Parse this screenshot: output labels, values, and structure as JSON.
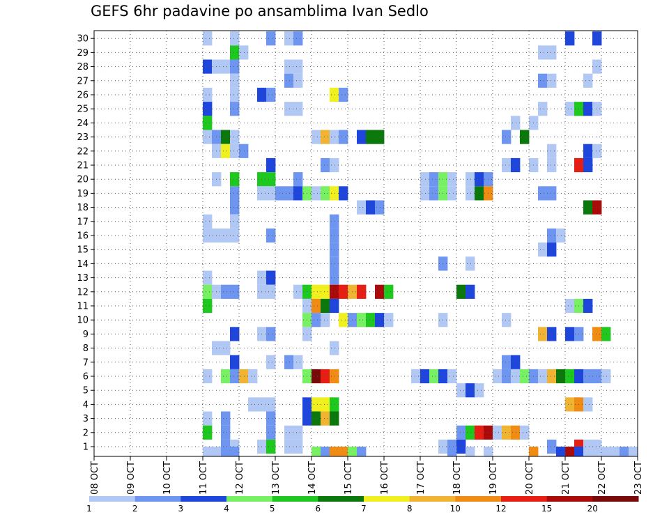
{
  "chart_data": {
    "type": "heatmap",
    "title": "GEFS 6hr padavine po ansamblima Ivan Sedlo",
    "x_ticks": [
      "08 OCT",
      "09 OCT",
      "10 OCT",
      "11 OCT",
      "12 OCT",
      "13 OCT",
      "14 OCT",
      "15 OCT",
      "16 OCT",
      "17 OCT",
      "18 OCT",
      "19 OCT",
      "20 OCT",
      "21 OCT",
      "22 OCT",
      "23 OCT"
    ],
    "y_range": [
      1,
      30
    ],
    "x_range_days": [
      8,
      23
    ],
    "grid": true,
    "colorbar": {
      "labels": [
        "1",
        "2",
        "3",
        "4",
        "5",
        "6",
        "7",
        "8",
        "10",
        "12",
        "15",
        "20"
      ],
      "colors": [
        "#b2c8f4",
        "#6e96f0",
        "#1e46dc",
        "#78f064",
        "#1ec81e",
        "#0a780a",
        "#f0f01e",
        "#f0b432",
        "#f08c14",
        "#e61e14",
        "#aa0a0a",
        "#780a0a"
      ]
    },
    "cells": [
      [
        30,
        11.0,
        1
      ],
      [
        30,
        11.75,
        1
      ],
      [
        30,
        12.75,
        2
      ],
      [
        30,
        13.25,
        1
      ],
      [
        30,
        13.5,
        2
      ],
      [
        30,
        21.0,
        3
      ],
      [
        30,
        21.75,
        3
      ],
      [
        29,
        11.75,
        5
      ],
      [
        29,
        12.0,
        1
      ],
      [
        29,
        20.25,
        1
      ],
      [
        29,
        20.5,
        1
      ],
      [
        28,
        11.0,
        3
      ],
      [
        28,
        11.25,
        1
      ],
      [
        28,
        11.5,
        1
      ],
      [
        28,
        11.75,
        2
      ],
      [
        28,
        13.25,
        1
      ],
      [
        28,
        13.5,
        1
      ],
      [
        28,
        21.75,
        1
      ],
      [
        27,
        11.75,
        1
      ],
      [
        27,
        13.25,
        2
      ],
      [
        27,
        13.5,
        1
      ],
      [
        27,
        20.25,
        2
      ],
      [
        27,
        20.5,
        1
      ],
      [
        27,
        21.5,
        1
      ],
      [
        26,
        11.0,
        1
      ],
      [
        26,
        11.75,
        1
      ],
      [
        26,
        12.5,
        3
      ],
      [
        26,
        12.75,
        2
      ],
      [
        26,
        14.5,
        7
      ],
      [
        26,
        14.75,
        2
      ],
      [
        25,
        11.0,
        3
      ],
      [
        25,
        11.75,
        2
      ],
      [
        25,
        13.25,
        1
      ],
      [
        25,
        13.5,
        1
      ],
      [
        25,
        20.25,
        1
      ],
      [
        25,
        21.0,
        1
      ],
      [
        25,
        21.25,
        5
      ],
      [
        25,
        21.5,
        3
      ],
      [
        25,
        21.75,
        1
      ],
      [
        24,
        11.0,
        5
      ],
      [
        24,
        19.5,
        1
      ],
      [
        24,
        20.0,
        1
      ],
      [
        23,
        11.0,
        1
      ],
      [
        23,
        11.25,
        2
      ],
      [
        23,
        11.5,
        6
      ],
      [
        23,
        11.75,
        1
      ],
      [
        23,
        14.0,
        1
      ],
      [
        23,
        14.25,
        8
      ],
      [
        23,
        14.5,
        1
      ],
      [
        23,
        14.75,
        2
      ],
      [
        23,
        15.25,
        3
      ],
      [
        23,
        15.5,
        6
      ],
      [
        23,
        15.75,
        6
      ],
      [
        23,
        19.25,
        2
      ],
      [
        23,
        19.75,
        6
      ],
      [
        22,
        11.25,
        1
      ],
      [
        22,
        11.5,
        7
      ],
      [
        22,
        11.75,
        1
      ],
      [
        22,
        12.0,
        2
      ],
      [
        22,
        20.5,
        1
      ],
      [
        22,
        21.5,
        3
      ],
      [
        22,
        21.75,
        1
      ],
      [
        21,
        12.75,
        3
      ],
      [
        21,
        14.25,
        2
      ],
      [
        21,
        14.5,
        1
      ],
      [
        21,
        19.25,
        1
      ],
      [
        21,
        19.5,
        3
      ],
      [
        21,
        20.0,
        1
      ],
      [
        21,
        20.5,
        1
      ],
      [
        21,
        21.25,
        10
      ],
      [
        21,
        21.5,
        3
      ],
      [
        20,
        11.25,
        1
      ],
      [
        20,
        11.75,
        5
      ],
      [
        20,
        12.5,
        5
      ],
      [
        20,
        12.75,
        5
      ],
      [
        20,
        13.5,
        2
      ],
      [
        20,
        17.0,
        1
      ],
      [
        20,
        17.25,
        2
      ],
      [
        20,
        17.5,
        4
      ],
      [
        20,
        17.75,
        1
      ],
      [
        20,
        18.25,
        1
      ],
      [
        20,
        18.5,
        3
      ],
      [
        20,
        18.75,
        2
      ],
      [
        19,
        11.75,
        2
      ],
      [
        19,
        12.5,
        1
      ],
      [
        19,
        12.75,
        1
      ],
      [
        19,
        13.0,
        2
      ],
      [
        19,
        13.25,
        2
      ],
      [
        19,
        13.5,
        3
      ],
      [
        19,
        13.75,
        4
      ],
      [
        19,
        14.0,
        1
      ],
      [
        19,
        14.25,
        4
      ],
      [
        19,
        14.5,
        7
      ],
      [
        19,
        14.75,
        3
      ],
      [
        19,
        17.0,
        1
      ],
      [
        19,
        17.25,
        2
      ],
      [
        19,
        17.5,
        4
      ],
      [
        19,
        17.75,
        1
      ],
      [
        19,
        18.25,
        1
      ],
      [
        19,
        18.5,
        6
      ],
      [
        19,
        18.75,
        9
      ],
      [
        19,
        20.25,
        2
      ],
      [
        19,
        20.5,
        2
      ],
      [
        18,
        11.75,
        2
      ],
      [
        18,
        15.25,
        1
      ],
      [
        18,
        15.5,
        3
      ],
      [
        18,
        15.75,
        2
      ],
      [
        18,
        21.5,
        6
      ],
      [
        18,
        21.75,
        11
      ],
      [
        17,
        11.0,
        1
      ],
      [
        17,
        11.75,
        1
      ],
      [
        17,
        14.5,
        2
      ],
      [
        16,
        11.0,
        1
      ],
      [
        16,
        11.25,
        1
      ],
      [
        16,
        11.5,
        1
      ],
      [
        16,
        11.75,
        1
      ],
      [
        16,
        12.75,
        2
      ],
      [
        16,
        14.5,
        2
      ],
      [
        16,
        20.5,
        2
      ],
      [
        16,
        20.75,
        1
      ],
      [
        15,
        14.5,
        2
      ],
      [
        15,
        20.25,
        1
      ],
      [
        15,
        20.5,
        3
      ],
      [
        14,
        14.5,
        2
      ],
      [
        14,
        17.5,
        2
      ],
      [
        14,
        18.25,
        1
      ],
      [
        13,
        11.0,
        1
      ],
      [
        13,
        12.5,
        1
      ],
      [
        13,
        12.75,
        3
      ],
      [
        13,
        14.5,
        2
      ],
      [
        12,
        11.0,
        4
      ],
      [
        12,
        11.25,
        1
      ],
      [
        12,
        11.5,
        2
      ],
      [
        12,
        11.75,
        2
      ],
      [
        12,
        12.5,
        1
      ],
      [
        12,
        12.75,
        1
      ],
      [
        12,
        13.5,
        1
      ],
      [
        12,
        13.75,
        5
      ],
      [
        12,
        14.0,
        7
      ],
      [
        12,
        14.25,
        7
      ],
      [
        12,
        14.5,
        11
      ],
      [
        12,
        14.75,
        10
      ],
      [
        12,
        15.0,
        8
      ],
      [
        12,
        15.25,
        10
      ],
      [
        12,
        15.75,
        11
      ],
      [
        12,
        16.0,
        5
      ],
      [
        12,
        18.0,
        6
      ],
      [
        12,
        18.25,
        3
      ],
      [
        11,
        11.0,
        5
      ],
      [
        11,
        13.75,
        1
      ],
      [
        11,
        14.0,
        9
      ],
      [
        11,
        14.25,
        6
      ],
      [
        11,
        14.5,
        3
      ],
      [
        11,
        21.0,
        1
      ],
      [
        11,
        21.25,
        4
      ],
      [
        11,
        21.5,
        3
      ],
      [
        10,
        13.75,
        4
      ],
      [
        10,
        14.0,
        2
      ],
      [
        10,
        14.25,
        1
      ],
      [
        10,
        14.75,
        7
      ],
      [
        10,
        15.0,
        2
      ],
      [
        10,
        15.25,
        4
      ],
      [
        10,
        15.5,
        5
      ],
      [
        10,
        15.75,
        3
      ],
      [
        10,
        16.0,
        1
      ],
      [
        10,
        17.5,
        1
      ],
      [
        10,
        19.25,
        1
      ],
      [
        9,
        11.75,
        3
      ],
      [
        9,
        12.5,
        1
      ],
      [
        9,
        12.75,
        2
      ],
      [
        9,
        13.75,
        1
      ],
      [
        9,
        20.25,
        8
      ],
      [
        9,
        20.5,
        3
      ],
      [
        9,
        21.0,
        3
      ],
      [
        9,
        21.25,
        2
      ],
      [
        9,
        21.75,
        9
      ],
      [
        9,
        22.0,
        5
      ],
      [
        8,
        11.25,
        1
      ],
      [
        8,
        11.5,
        1
      ],
      [
        8,
        14.5,
        1
      ],
      [
        7,
        11.75,
        3
      ],
      [
        7,
        12.75,
        1
      ],
      [
        7,
        13.25,
        2
      ],
      [
        7,
        13.5,
        1
      ],
      [
        7,
        19.25,
        2
      ],
      [
        7,
        19.5,
        3
      ],
      [
        6,
        11.0,
        1
      ],
      [
        6,
        11.5,
        4
      ],
      [
        6,
        11.75,
        2
      ],
      [
        6,
        12.0,
        8
      ],
      [
        6,
        12.25,
        1
      ],
      [
        6,
        13.75,
        4
      ],
      [
        6,
        14.0,
        12
      ],
      [
        6,
        14.25,
        10
      ],
      [
        6,
        14.5,
        9
      ],
      [
        6,
        16.75,
        1
      ],
      [
        6,
        17.0,
        3
      ],
      [
        6,
        17.25,
        4
      ],
      [
        6,
        17.5,
        3
      ],
      [
        6,
        17.75,
        1
      ],
      [
        6,
        19.0,
        1
      ],
      [
        6,
        19.25,
        2
      ],
      [
        6,
        19.5,
        1
      ],
      [
        6,
        19.75,
        4
      ],
      [
        6,
        20.0,
        2
      ],
      [
        6,
        20.25,
        1
      ],
      [
        6,
        20.5,
        8
      ],
      [
        6,
        20.75,
        6
      ],
      [
        6,
        21.0,
        5
      ],
      [
        6,
        21.25,
        3
      ],
      [
        6,
        21.5,
        2
      ],
      [
        6,
        21.75,
        2
      ],
      [
        6,
        22.0,
        1
      ],
      [
        5,
        18.0,
        1
      ],
      [
        5,
        18.25,
        3
      ],
      [
        5,
        18.5,
        1
      ],
      [
        4,
        12.25,
        1
      ],
      [
        4,
        12.5,
        1
      ],
      [
        4,
        12.75,
        1
      ],
      [
        4,
        13.75,
        3
      ],
      [
        4,
        14.0,
        7
      ],
      [
        4,
        14.25,
        7
      ],
      [
        4,
        14.5,
        5
      ],
      [
        4,
        21.0,
        8
      ],
      [
        4,
        21.25,
        9
      ],
      [
        4,
        21.5,
        1
      ],
      [
        3,
        11.0,
        1
      ],
      [
        3,
        11.5,
        2
      ],
      [
        3,
        12.75,
        2
      ],
      [
        3,
        13.75,
        3
      ],
      [
        3,
        14.0,
        6
      ],
      [
        3,
        14.25,
        8
      ],
      [
        3,
        14.5,
        6
      ],
      [
        2,
        11.0,
        5
      ],
      [
        2,
        11.5,
        2
      ],
      [
        2,
        12.75,
        2
      ],
      [
        2,
        13.25,
        1
      ],
      [
        2,
        13.5,
        1
      ],
      [
        2,
        18.0,
        2
      ],
      [
        2,
        18.25,
        5
      ],
      [
        2,
        18.5,
        10
      ],
      [
        2,
        18.75,
        11
      ],
      [
        2,
        19.0,
        1
      ],
      [
        2,
        19.25,
        8
      ],
      [
        2,
        19.5,
        9
      ],
      [
        2,
        19.75,
        1
      ],
      [
        1,
        11.5,
        2
      ],
      [
        1,
        11.75,
        1
      ],
      [
        1,
        12.5,
        1
      ],
      [
        1,
        12.75,
        5
      ],
      [
        1,
        13.25,
        1
      ],
      [
        1,
        13.5,
        1
      ],
      [
        1,
        17.5,
        1
      ],
      [
        1,
        17.75,
        2
      ],
      [
        1,
        18.0,
        3
      ],
      [
        1,
        20.5,
        2
      ],
      [
        1,
        21.25,
        10
      ],
      [
        1,
        21.5,
        1
      ],
      [
        1,
        21.75,
        1
      ],
      [
        0.5,
        11.0,
        1
      ],
      [
        0.5,
        11.25,
        1
      ],
      [
        0.5,
        11.5,
        2
      ],
      [
        0.5,
        11.75,
        2
      ],
      [
        0.5,
        14.0,
        4
      ],
      [
        0.5,
        14.25,
        2
      ],
      [
        0.5,
        14.5,
        9
      ],
      [
        0.5,
        14.75,
        9
      ],
      [
        0.5,
        15.0,
        4
      ],
      [
        0.5,
        15.25,
        2
      ],
      [
        0.5,
        17.75,
        2
      ],
      [
        0.5,
        18.25,
        1
      ],
      [
        0.5,
        18.75,
        1
      ],
      [
        0.5,
        20.0,
        9
      ],
      [
        0.5,
        20.75,
        3
      ],
      [
        0.5,
        21.0,
        11
      ],
      [
        0.5,
        21.25,
        3
      ],
      [
        0.5,
        21.5,
        1
      ],
      [
        0.5,
        21.75,
        1
      ],
      [
        0.5,
        22.0,
        1
      ],
      [
        0.5,
        22.25,
        1
      ],
      [
        0.5,
        22.5,
        2
      ],
      [
        0.5,
        22.75,
        1
      ]
    ]
  }
}
